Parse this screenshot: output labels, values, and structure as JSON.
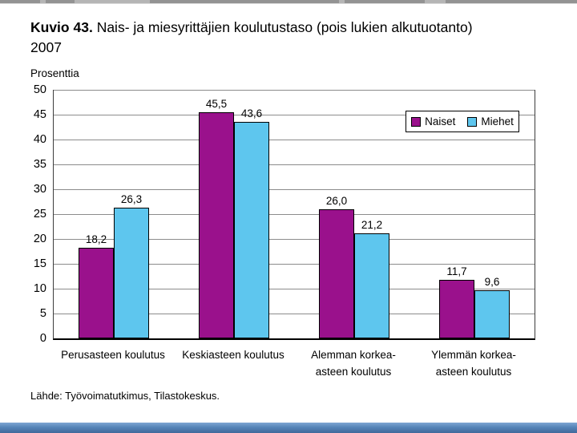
{
  "header": {
    "title_prefix": "Kuvio 43.",
    "title_line1": "Nais- ja miesyrittäjien koulutustaso (pois lukien alkutuotanto)",
    "title_line2": "2007",
    "axis_unit_label": "Prosenttia"
  },
  "footer": {
    "source": "Lähde: Työvoimatutkimus, Tilastokeskus."
  },
  "colors": {
    "naiset": "#9A118C",
    "miehet": "#5EC6EE",
    "gridline": "#8c8c8c",
    "bottom_bar": "#5584b8"
  },
  "chart_data": {
    "type": "bar",
    "title": "Kuvio 43. Nais- ja miesyrittäjien koulutustaso (pois lukien alkutuotanto) 2007",
    "xlabel": "",
    "ylabel": "Prosenttia",
    "ylim": [
      0,
      50
    ],
    "ytick_step": 5,
    "yticks": [
      0,
      5,
      10,
      15,
      20,
      25,
      30,
      35,
      40,
      45,
      50
    ],
    "grid": true,
    "legend_position": "top-right-inside",
    "categories": [
      "Perusasteen koulutus",
      "Keskiasteen koulutus",
      "Alemman korkea-asteen koulutus",
      "Ylemmän korkea-asteen koulutus"
    ],
    "categories_display": [
      "Perusasteen koulutus",
      "Keskiasteen koulutus",
      "Alemman korkea-\nasteen koulutus",
      "Ylemmän korkea-\nasteen koulutus"
    ],
    "series": [
      {
        "name": "Naiset",
        "color": "#9A118C",
        "values": [
          18.2,
          45.5,
          26.0,
          11.7
        ],
        "labels": [
          "18,2",
          "45,5",
          "26,0",
          "11,7"
        ]
      },
      {
        "name": "Miehet",
        "color": "#5EC6EE",
        "values": [
          26.3,
          43.6,
          21.2,
          9.6
        ],
        "labels": [
          "26,3",
          "43,6",
          "21,2",
          "9,6"
        ]
      }
    ]
  }
}
